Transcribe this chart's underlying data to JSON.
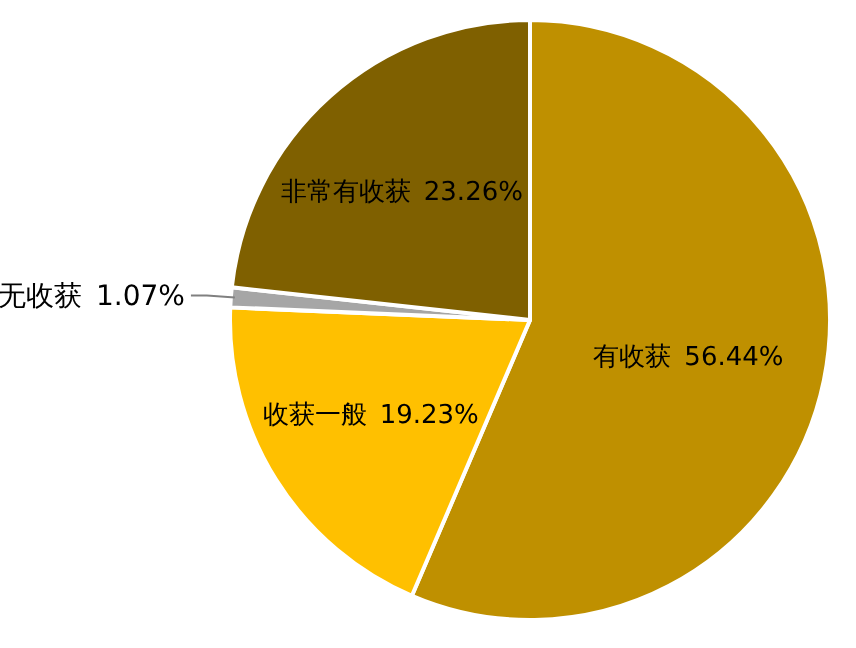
{
  "chart_data": {
    "type": "pie",
    "categories": [
      "有收获",
      "收获一般",
      "无收获",
      "非常有收获"
    ],
    "values": [
      56.44,
      19.23,
      1.07,
      23.26
    ],
    "value_labels": [
      "56.44%",
      "19.23%",
      "1.07%",
      "23.26%"
    ],
    "colors": [
      "#bf9000",
      "#ffc000",
      "#a6a6a6",
      "#7f6000"
    ]
  }
}
